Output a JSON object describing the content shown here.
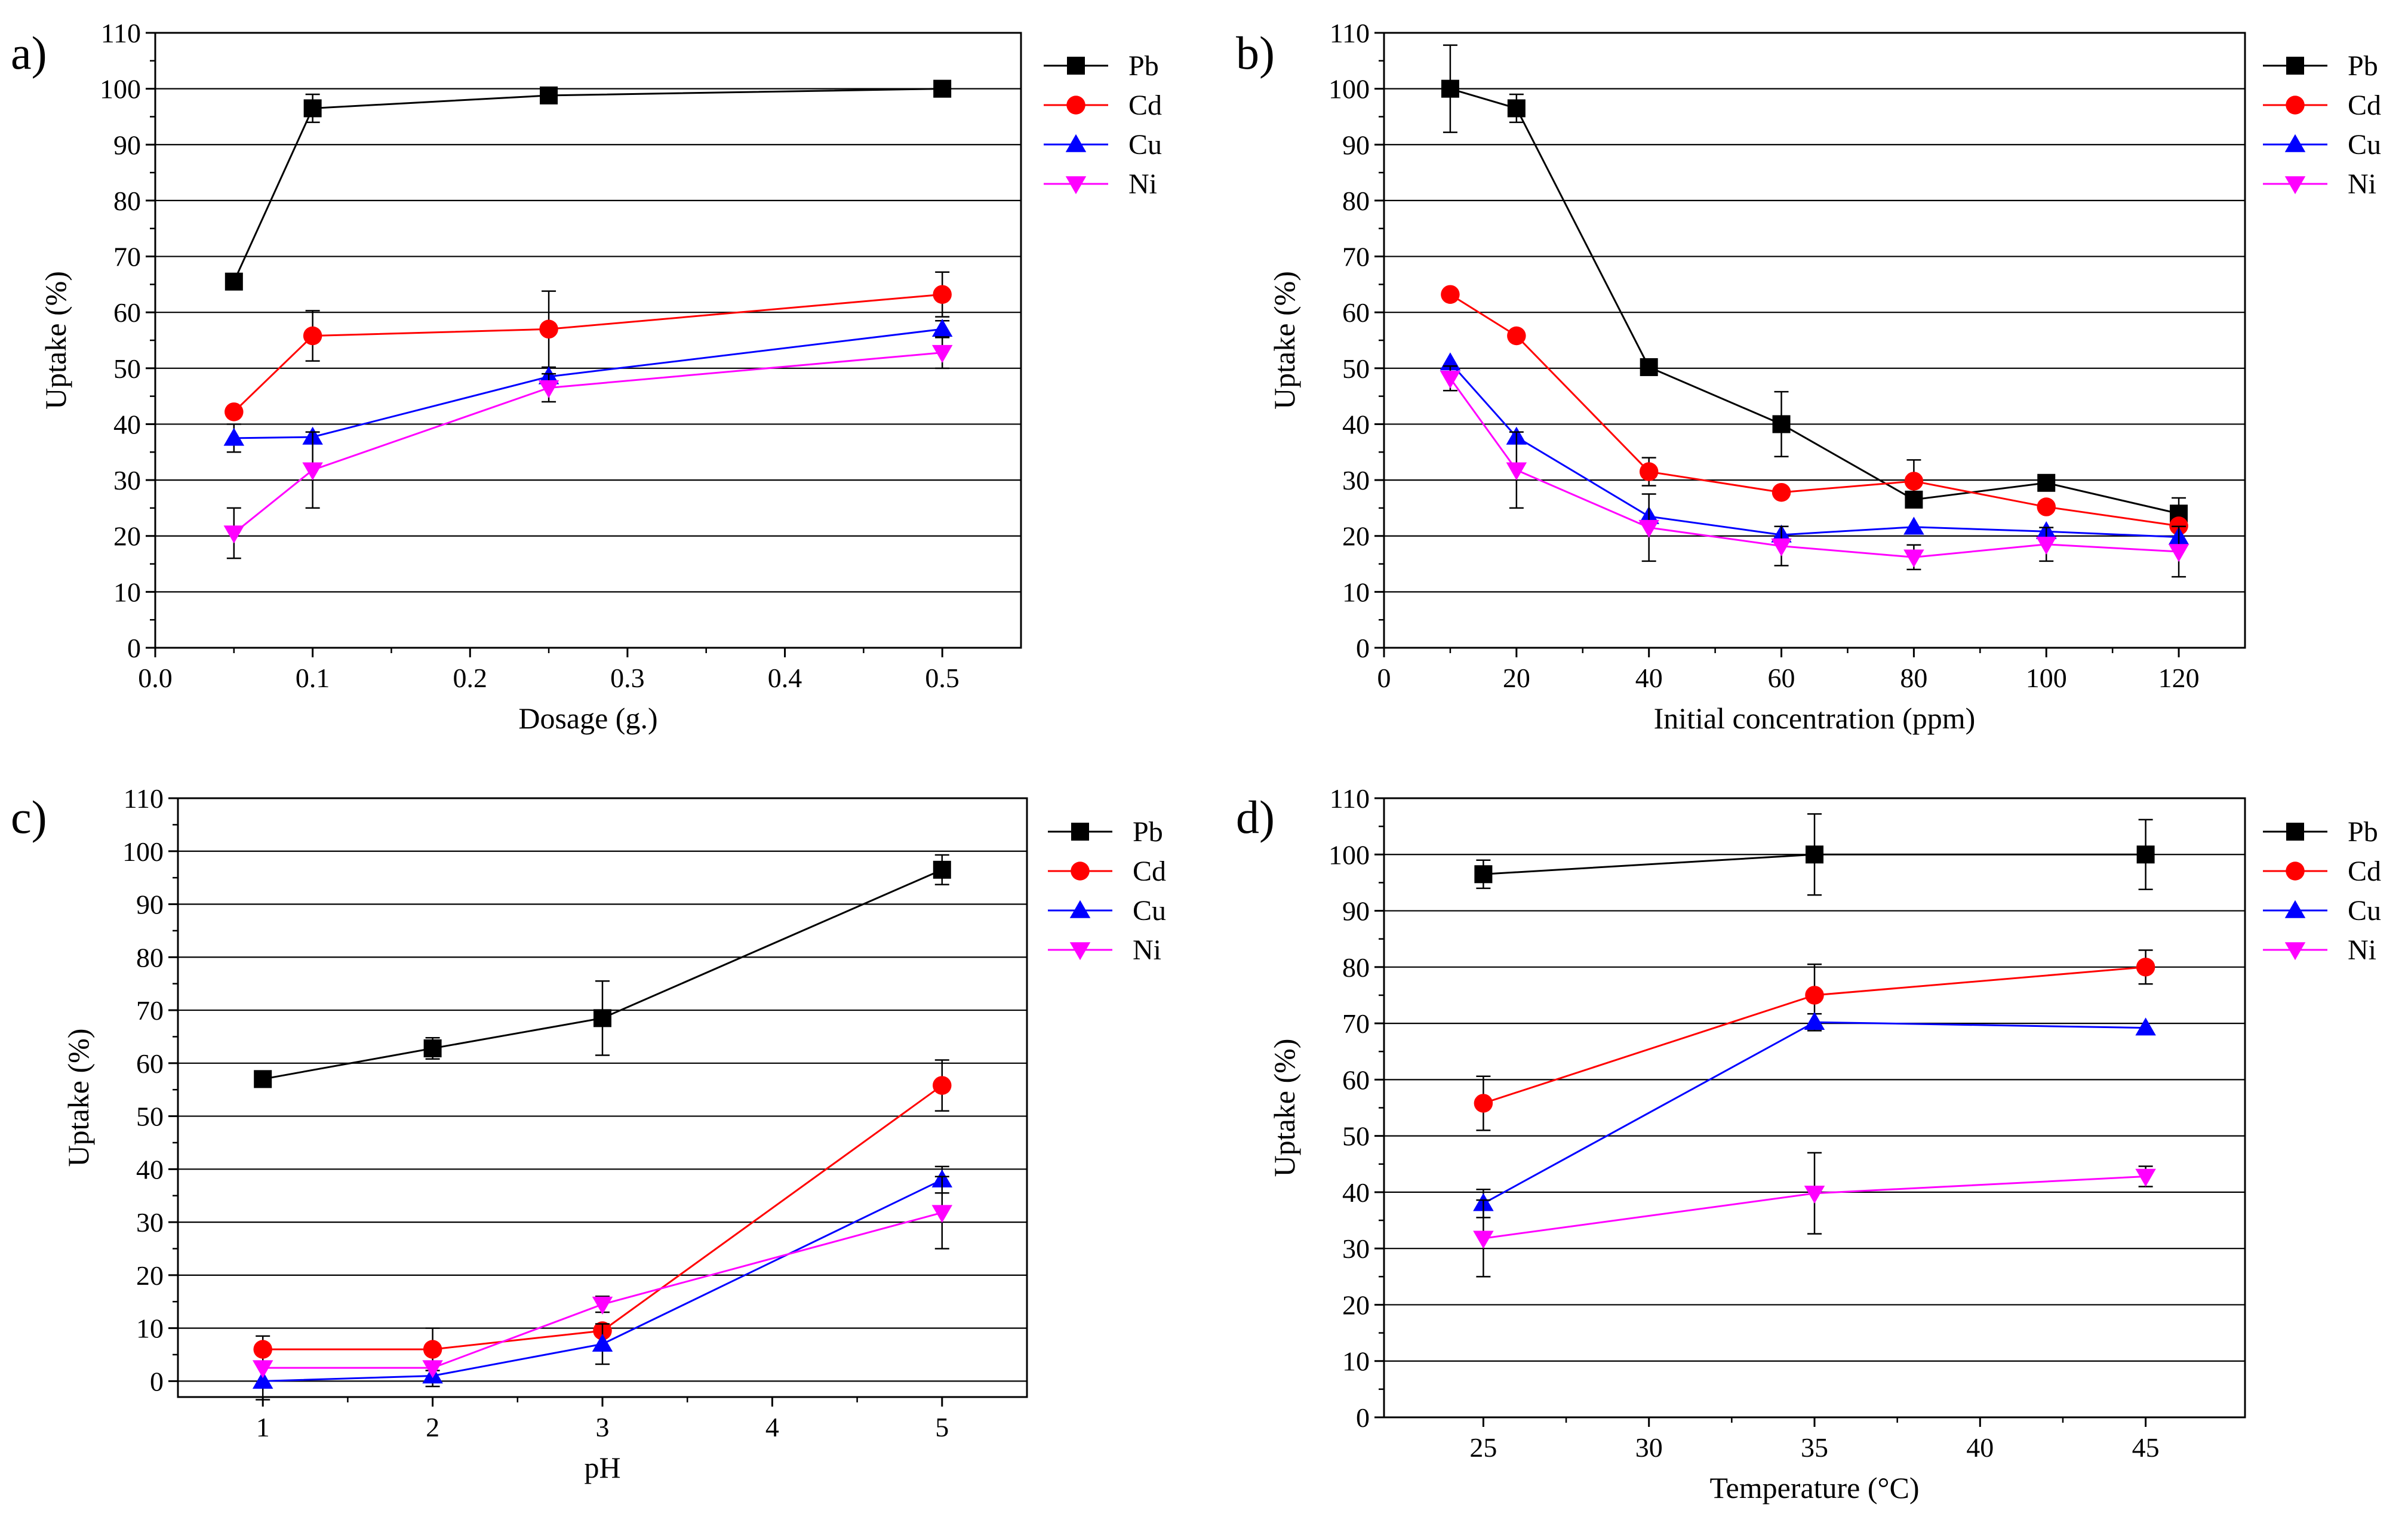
{
  "chart_data": [
    {
      "panel": "a)",
      "type": "line",
      "title": "",
      "xlabel": "Dosage (g.)",
      "ylabel": "Uptake (%)",
      "xlim": [
        0.0,
        0.55
      ],
      "ylim": [
        0,
        110
      ],
      "xticks": [
        0.0,
        0.1,
        0.2,
        0.3,
        0.4,
        0.5
      ],
      "xtick_labels": [
        "0.0",
        "0.1",
        "0.2",
        "0.3",
        "0.4",
        "0.5"
      ],
      "yticks": [
        0,
        10,
        20,
        30,
        40,
        50,
        60,
        70,
        80,
        90,
        100,
        110
      ],
      "ytick_labels": [
        "0",
        "10",
        "20",
        "30",
        "40",
        "50",
        "60",
        "70",
        "80",
        "90",
        "100",
        "110"
      ],
      "grid": "horizontal",
      "legend_position": "outside-right",
      "x": [
        0.05,
        0.1,
        0.25,
        0.5
      ],
      "series": [
        {
          "name": "Pb",
          "color": "#000000",
          "marker": "square",
          "values": [
            65.5,
            96.5,
            98.8,
            100
          ],
          "errors": [
            0,
            2.5,
            0,
            0
          ]
        },
        {
          "name": "Cd",
          "color": "#ff0000",
          "marker": "circle",
          "values": [
            42.2,
            55.8,
            57,
            63.2
          ],
          "errors": [
            0,
            4.5,
            6.8,
            4
          ]
        },
        {
          "name": "Cu",
          "color": "#0000ff",
          "marker": "triangle-up",
          "values": [
            37.5,
            37.7,
            48.5,
            57
          ],
          "errors": [
            2.5,
            0,
            0,
            1.5
          ]
        },
        {
          "name": "Ni",
          "color": "#ff00ff",
          "marker": "triangle-down",
          "values": [
            20.5,
            31.8,
            46.5,
            52.8
          ],
          "errors": [
            4.5,
            6.8,
            2.5,
            2.8
          ]
        }
      ]
    },
    {
      "panel": "b)",
      "type": "line",
      "title": "",
      "xlabel": "Initial concentration (ppm)",
      "ylabel": "Uptake (%)",
      "xlim": [
        0,
        130
      ],
      "ylim": [
        0,
        110
      ],
      "xticks": [
        0,
        20,
        40,
        60,
        80,
        100,
        120
      ],
      "xtick_labels": [
        "0",
        "20",
        "40",
        "60",
        "80",
        "100",
        "120"
      ],
      "yticks": [
        0,
        10,
        20,
        30,
        40,
        50,
        60,
        70,
        80,
        90,
        100,
        110
      ],
      "ytick_labels": [
        "0",
        "10",
        "20",
        "30",
        "40",
        "50",
        "60",
        "70",
        "80",
        "90",
        "100",
        "110"
      ],
      "grid": "horizontal",
      "legend_position": "outside-right",
      "x": [
        10,
        20,
        40,
        60,
        80,
        100,
        120
      ],
      "series": [
        {
          "name": "Pb",
          "color": "#000000",
          "marker": "square",
          "values": [
            100,
            96.5,
            50.2,
            40,
            26.5,
            29.5,
            24
          ],
          "errors": [
            7.8,
            2.5,
            0,
            5.8,
            0,
            0,
            2.8
          ]
        },
        {
          "name": "Cd",
          "color": "#ff0000",
          "marker": "circle",
          "values": [
            63.2,
            55.8,
            31.5,
            27.8,
            29.8,
            25.2,
            21.8
          ],
          "errors": [
            0,
            0,
            2.5,
            0,
            3.8,
            0,
            0
          ]
        },
        {
          "name": "Cu",
          "color": "#0000ff",
          "marker": "triangle-up",
          "values": [
            51,
            37.7,
            23.5,
            20.2,
            21.6,
            20.8,
            19.8
          ],
          "errors": [
            0,
            0,
            0,
            0,
            0,
            0,
            0
          ]
        },
        {
          "name": "Ni",
          "color": "#ff00ff",
          "marker": "triangle-down",
          "values": [
            48.2,
            31.8,
            21.5,
            18.2,
            16.2,
            18.5,
            17.2
          ],
          "errors": [
            2.2,
            6.8,
            6,
            3.5,
            2.2,
            3,
            4.5
          ]
        }
      ]
    },
    {
      "panel": "c)",
      "type": "line",
      "title": "",
      "xlabel": "pH",
      "ylabel": "Uptake (%)",
      "xlim": [
        0.5,
        5.5
      ],
      "ylim": [
        -3,
        110
      ],
      "xticks": [
        1,
        2,
        3,
        4,
        5
      ],
      "xtick_labels": [
        "1",
        "2",
        "3",
        "4",
        "5"
      ],
      "yticks": [
        0,
        10,
        20,
        30,
        40,
        50,
        60,
        70,
        80,
        90,
        100,
        110
      ],
      "ytick_labels": [
        "0",
        "10",
        "20",
        "30",
        "40",
        "50",
        "60",
        "70",
        "80",
        "90",
        "100",
        "110"
      ],
      "grid": "horizontal",
      "legend_position": "outside-right",
      "x": [
        1,
        2,
        3,
        5
      ],
      "series": [
        {
          "name": "Pb",
          "color": "#000000",
          "marker": "square",
          "values": [
            57,
            62.8,
            68.5,
            96.5
          ],
          "errors": [
            0,
            2,
            7,
            2.8
          ]
        },
        {
          "name": "Cd",
          "color": "#ff0000",
          "marker": "circle",
          "values": [
            6,
            6,
            9.5,
            55.8
          ],
          "errors": [
            2.5,
            4,
            0,
            4.8
          ]
        },
        {
          "name": "Cu",
          "color": "#0000ff",
          "marker": "triangle-up",
          "values": [
            0,
            1,
            7,
            38
          ],
          "errors": [
            3.5,
            2,
            3.8,
            2.5
          ]
        },
        {
          "name": "Ni",
          "color": "#ff00ff",
          "marker": "triangle-down",
          "values": [
            2.5,
            2.5,
            14.5,
            31.8
          ],
          "errors": [
            0,
            0,
            1.5,
            6.8
          ]
        }
      ]
    },
    {
      "panel": "d)",
      "type": "line",
      "title": "",
      "xlabel": "Temperature (°C)",
      "ylabel": "Uptake (%)",
      "xlim": [
        22,
        48
      ],
      "ylim": [
        0,
        110
      ],
      "xticks": [
        25,
        30,
        35,
        40,
        45
      ],
      "xtick_labels": [
        "25",
        "30",
        "35",
        "40",
        "45"
      ],
      "yticks": [
        0,
        10,
        20,
        30,
        40,
        50,
        60,
        70,
        80,
        90,
        100,
        110
      ],
      "ytick_labels": [
        "0",
        "10",
        "20",
        "30",
        "40",
        "50",
        "60",
        "70",
        "80",
        "90",
        "100",
        "110"
      ],
      "grid": "horizontal",
      "legend_position": "outside-right",
      "x": [
        25,
        35,
        45
      ],
      "series": [
        {
          "name": "Pb",
          "color": "#000000",
          "marker": "square",
          "values": [
            96.5,
            100,
            100
          ],
          "errors": [
            2.5,
            7.2,
            6.2
          ]
        },
        {
          "name": "Cd",
          "color": "#ff0000",
          "marker": "circle",
          "values": [
            55.8,
            75,
            80
          ],
          "errors": [
            4.8,
            5.5,
            3
          ]
        },
        {
          "name": "Cu",
          "color": "#0000ff",
          "marker": "triangle-up",
          "values": [
            38,
            70.2,
            69.2
          ],
          "errors": [
            2.5,
            1.5,
            0
          ]
        },
        {
          "name": "Ni",
          "color": "#ff00ff",
          "marker": "triangle-down",
          "values": [
            31.8,
            39.8,
            42.8
          ],
          "errors": [
            6.8,
            7.2,
            1.8
          ]
        }
      ]
    }
  ]
}
